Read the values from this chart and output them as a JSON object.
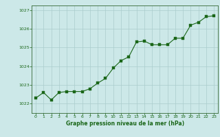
{
  "x": [
    0,
    1,
    2,
    3,
    4,
    5,
    6,
    7,
    8,
    9,
    10,
    11,
    12,
    13,
    14,
    15,
    16,
    17,
    18,
    19,
    20,
    21,
    22,
    23
  ],
  "y": [
    1022.3,
    1022.6,
    1022.2,
    1022.6,
    1022.65,
    1022.65,
    1022.65,
    1022.8,
    1023.1,
    1023.35,
    1023.9,
    1024.3,
    1024.5,
    1025.3,
    1025.35,
    1025.15,
    1025.15,
    1025.15,
    1025.5,
    1025.5,
    1026.2,
    1026.35,
    1026.65,
    1026.7
  ],
  "xlabel": "Graphe pression niveau de la mer (hPa)",
  "ylim_min": 1021.5,
  "ylim_max": 1027.25,
  "xlim_min": -0.5,
  "xlim_max": 23.5,
  "yticks": [
    1022,
    1023,
    1024,
    1025,
    1026,
    1027
  ],
  "xticks": [
    0,
    1,
    2,
    3,
    4,
    5,
    6,
    7,
    8,
    9,
    10,
    11,
    12,
    13,
    14,
    15,
    16,
    17,
    18,
    19,
    20,
    21,
    22,
    23
  ],
  "line_color": "#1a6618",
  "marker_color": "#1a6618",
  "bg_color": "#cce8e8",
  "grid_color": "#aacccc",
  "xlabel_color": "#1a6618",
  "tick_color": "#1a6618",
  "spine_color": "#336633"
}
